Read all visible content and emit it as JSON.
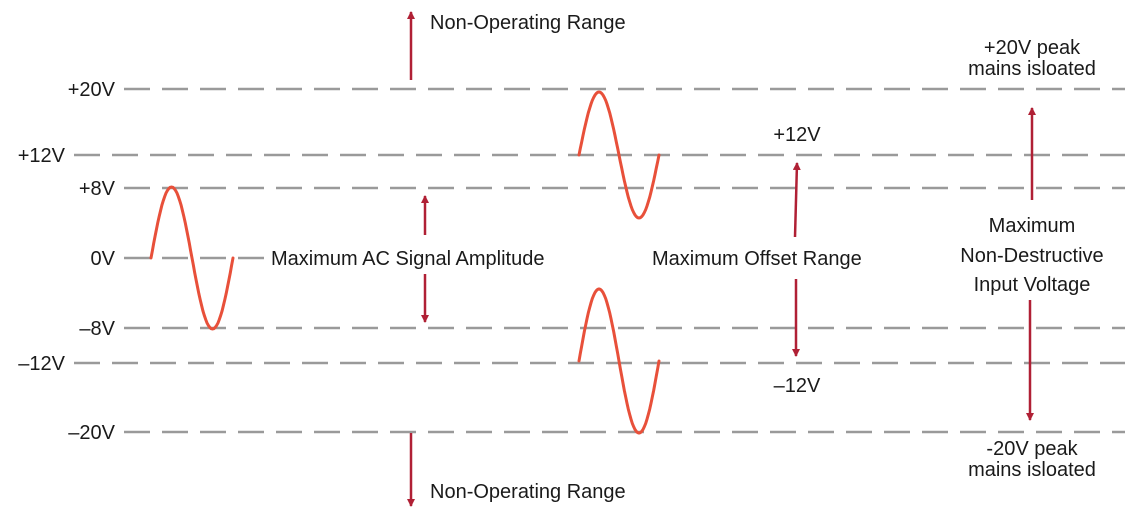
{
  "levels": [
    {
      "label": "+20V"
    },
    {
      "label": "+12V"
    },
    {
      "label": "+8V"
    },
    {
      "label": "0V"
    },
    {
      "label": "–8V"
    },
    {
      "label": "–12V"
    },
    {
      "label": "–20V"
    }
  ],
  "labels": {
    "non_operating_top": "Non-Operating Range",
    "non_operating_bottom": "Non-Operating Range",
    "ac_amplitude": "Maximum AC Signal Amplitude",
    "offset_range": "Maximum Offset Range",
    "offset_top": "+12V",
    "offset_bottom": "–12V",
    "peak_top_line1": "+20V peak",
    "peak_top_line2": "mains isloated",
    "peak_bottom_line1": "-20V peak",
    "peak_bottom_line2": "mains isloated",
    "max_line1": "Maximum",
    "max_line2": "Non-Destructive",
    "max_line3": "Input Voltage"
  },
  "colors": {
    "gridline": "#9a9a9a",
    "signal": "#e8503a",
    "arrow": "#b02035",
    "text": "#1a1a1a"
  }
}
